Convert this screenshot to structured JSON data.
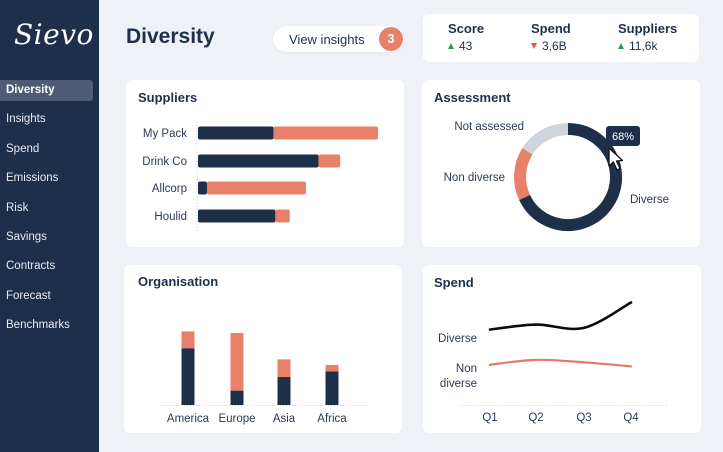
{
  "app": {
    "logo": "Sievo"
  },
  "sidebar": {
    "items": [
      {
        "label": "Diversity",
        "active": true
      },
      {
        "label": "Insights"
      },
      {
        "label": "Spend"
      },
      {
        "label": "Emissions"
      },
      {
        "label": "Risk"
      },
      {
        "label": "Savings"
      },
      {
        "label": "Contracts"
      },
      {
        "label": "Forecast"
      },
      {
        "label": "Benchmarks"
      }
    ]
  },
  "header": {
    "title": "Diversity",
    "insights_button": {
      "label": "View insights",
      "badge": "3"
    }
  },
  "kpis": [
    {
      "label": "Score",
      "value": "43",
      "trend": "up"
    },
    {
      "label": "Spend",
      "value": "3,6B",
      "trend": "down"
    },
    {
      "label": "Suppliers",
      "value": "11,6k",
      "trend": "up"
    }
  ],
  "colors": {
    "navy": "#1e2f4a",
    "salmon": "#e8806a",
    "grey": "#cfd4dc",
    "line_black": "#0b0b0b",
    "line_red": "#e07a6e",
    "up": "#2e9a4b",
    "down": "#e2534a"
  },
  "cursor_icon": "pointer-arrow-icon",
  "chart_data": [
    {
      "type": "bar",
      "orientation": "horizontal",
      "stacked": true,
      "title": "Suppliers",
      "categories": [
        "My Pack",
        "Drink Co",
        "Allcorp",
        "Houlid"
      ],
      "series": [
        {
          "values": [
            0.42,
            0.67,
            0.05,
            0.43
          ],
          "color": "#1e2f4a"
        },
        {
          "values": [
            0.58,
            0.12,
            0.55,
            0.08
          ],
          "color": "#e8806a"
        }
      ]
    },
    {
      "type": "pie",
      "donut": true,
      "title": "Assessment",
      "labels": [
        "Diverse",
        "Non diverse",
        "Not assessed"
      ],
      "values": [
        68,
        16,
        16
      ],
      "colors": [
        "#1e2f4a",
        "#e8806a",
        "#cfd4dc"
      ],
      "tooltip": "68%"
    },
    {
      "type": "bar",
      "stacked": true,
      "title": "Organisation",
      "categories": [
        "America",
        "Europe",
        "Asia",
        "Africa"
      ],
      "series": [
        {
          "values": [
            71,
            18,
            35,
            42
          ],
          "color": "#1e2f4a"
        },
        {
          "values": [
            21,
            72,
            22,
            8
          ],
          "color": "#e8806a"
        }
      ]
    },
    {
      "type": "line",
      "title": "Spend",
      "x": [
        "Q1",
        "Q2",
        "Q3",
        "Q4"
      ],
      "series": [
        {
          "name": "Diverse",
          "values": [
            64,
            70,
            66,
            97
          ],
          "color": "#0b0b0b"
        },
        {
          "name": "Non diverse",
          "values": [
            21,
            27,
            24,
            19
          ],
          "color": "#e07a6e"
        }
      ],
      "ylim": [
        0,
        100
      ]
    }
  ]
}
